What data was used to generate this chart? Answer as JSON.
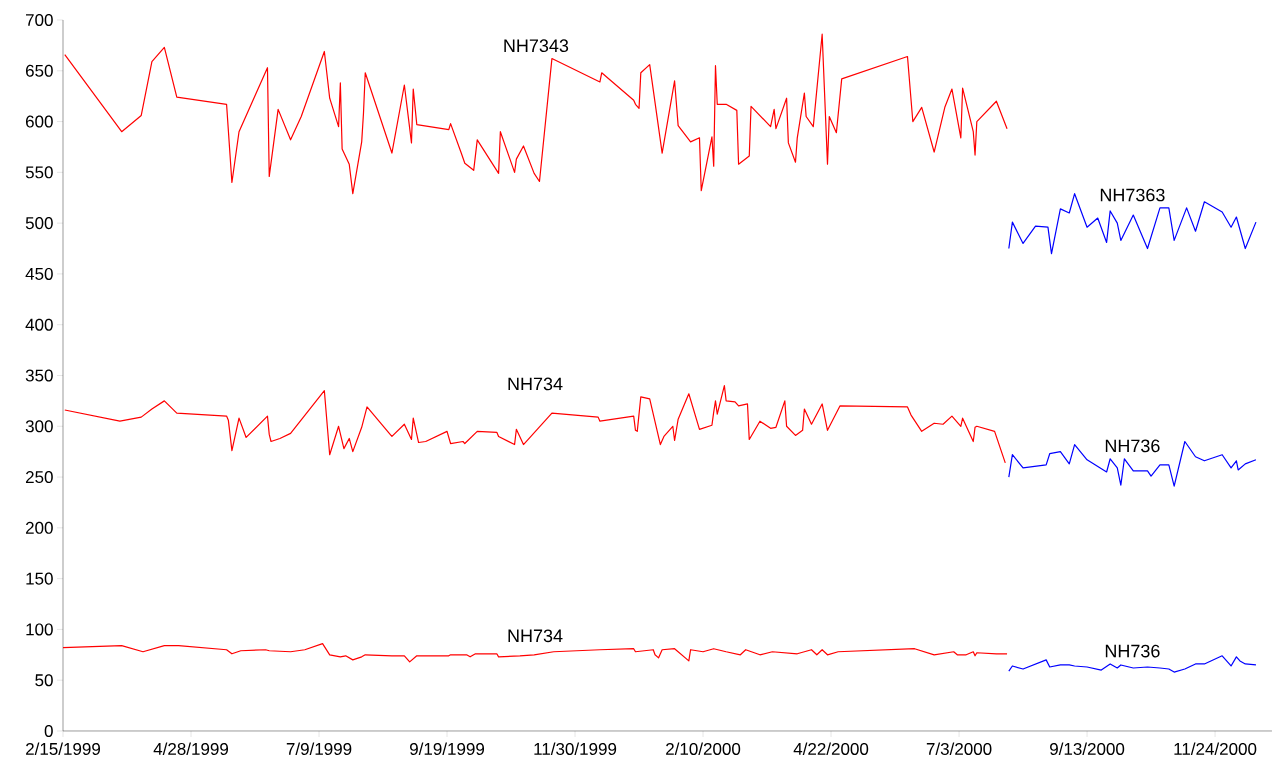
{
  "chart_data": {
    "type": "line",
    "xlim": [
      "1999-02-15",
      "2000-12-26"
    ],
    "xticks": [
      {
        "value": "1999-02-15",
        "label": "2/15/1999"
      },
      {
        "value": "1999-04-28",
        "label": "4/28/1999"
      },
      {
        "value": "1999-07-09",
        "label": "7/9/1999"
      },
      {
        "value": "1999-09-19",
        "label": "9/19/1999"
      },
      {
        "value": "1999-11-30",
        "label": "11/30/1999"
      },
      {
        "value": "2000-02-10",
        "label": "2/10/2000"
      },
      {
        "value": "2000-04-22",
        "label": "4/22/2000"
      },
      {
        "value": "2000-07-03",
        "label": "7/3/2000"
      },
      {
        "value": "2000-09-13",
        "label": "9/13/2000"
      },
      {
        "value": "2000-11-24",
        "label": "11/24/2000"
      }
    ],
    "ylim": [
      0,
      700
    ],
    "yticks": [
      0,
      50,
      100,
      150,
      200,
      250,
      300,
      350,
      400,
      450,
      500,
      550,
      600,
      650,
      700
    ],
    "series": [
      {
        "name": "NH7343",
        "color": "#ff0000",
        "x": [
          "1999-02-16",
          "1999-03-20",
          "1999-03-31",
          "1999-04-06",
          "1999-04-13",
          "1999-04-20",
          "1999-05-18",
          "1999-05-21",
          "1999-05-25",
          "1999-06-10",
          "1999-06-11",
          "1999-06-16",
          "1999-06-23",
          "1999-06-29",
          "1999-07-12",
          "1999-07-15",
          "1999-07-20",
          "1999-07-21",
          "1999-07-22",
          "1999-07-26",
          "1999-07-28",
          "1999-08-02",
          "1999-08-03",
          "1999-08-04",
          "1999-08-19",
          "1999-08-26",
          "1999-08-30",
          "1999-08-31",
          "1999-09-02",
          "1999-09-20",
          "1999-09-21",
          "1999-09-27",
          "1999-09-29",
          "1999-10-04",
          "1999-10-06",
          "1999-10-18",
          "1999-10-19",
          "1999-10-27",
          "1999-10-28",
          "1999-11-01",
          "1999-11-07",
          "1999-11-10",
          "1999-11-17",
          "1999-12-14",
          "1999-12-15",
          "2000-01-02",
          "2000-01-03",
          "2000-01-05",
          "2000-01-06",
          "2000-01-11",
          "2000-01-18",
          "2000-01-25",
          "2000-01-27",
          "2000-02-03",
          "2000-02-08",
          "2000-02-09",
          "2000-02-15",
          "2000-02-16",
          "2000-02-17",
          "2000-02-18",
          "2000-02-23",
          "2000-02-29",
          "2000-03-01",
          "2000-03-07",
          "2000-03-08",
          "2000-03-19",
          "2000-03-21",
          "2000-03-22",
          "2000-03-28",
          "2000-03-29",
          "2000-04-02",
          "2000-04-03",
          "2000-04-07",
          "2000-04-08",
          "2000-04-12",
          "2000-04-17",
          "2000-04-20",
          "2000-04-21",
          "2000-04-25",
          "2000-04-28",
          "2000-06-04",
          "2000-06-07",
          "2000-06-12",
          "2000-06-19",
          "2000-06-25",
          "2000-06-29",
          "2000-07-04",
          "2000-07-05",
          "2000-07-11",
          "2000-07-12",
          "2000-07-13",
          "2000-07-24",
          "2000-07-30"
        ],
        "values": [
          666,
          590,
          606,
          659,
          673,
          624,
          617,
          540,
          590,
          653,
          546,
          612,
          582,
          605,
          669,
          623,
          595,
          638,
          573,
          558,
          529,
          580,
          608,
          648,
          569,
          636,
          579,
          632,
          597,
          592,
          598,
          569,
          559,
          552,
          582,
          549,
          590,
          550,
          563,
          576,
          549,
          541,
          662,
          639,
          648,
          621,
          617,
          613,
          648,
          656,
          569,
          640,
          596,
          580,
          584,
          532,
          585,
          556,
          655,
          617,
          617,
          611,
          558,
          566,
          615,
          595,
          612,
          593,
          623,
          579,
          560,
          584,
          628,
          605,
          595,
          686,
          558,
          605,
          589,
          642,
          664,
          600,
          614,
          570,
          614,
          632,
          584,
          633,
          590,
          567,
          600,
          620,
          593
        ]
      },
      {
        "name": "NH7363",
        "color": "#0000ff",
        "x": [
          "2000-07-31",
          "2000-08-02",
          "2000-08-08",
          "2000-08-15",
          "2000-08-22",
          "2000-08-24",
          "2000-08-29",
          "2000-09-03",
          "2000-09-06",
          "2000-09-13",
          "2000-09-19",
          "2000-09-24",
          "2000-09-26",
          "2000-09-30",
          "2000-10-02",
          "2000-10-09",
          "2000-10-17",
          "2000-10-24",
          "2000-10-29",
          "2000-11-01",
          "2000-11-08",
          "2000-11-13",
          "2000-11-18",
          "2000-11-28",
          "2000-12-03",
          "2000-12-06",
          "2000-12-11",
          "2000-12-17"
        ],
        "values": [
          475,
          501,
          480,
          497,
          496,
          470,
          514,
          510,
          529,
          496,
          505,
          481,
          512,
          500,
          483,
          508,
          475,
          515,
          515,
          483,
          515,
          492,
          521,
          511,
          496,
          506,
          475,
          501
        ]
      },
      {
        "name": "NH734",
        "color": "#ff0000",
        "x": [
          "1999-02-16",
          "1999-03-19",
          "1999-03-31",
          "1999-04-06",
          "1999-04-13",
          "1999-04-20",
          "1999-05-18",
          "1999-05-19",
          "1999-05-21",
          "1999-05-25",
          "1999-05-29",
          "1999-06-10",
          "1999-06-11",
          "1999-06-12",
          "1999-06-17",
          "1999-06-23",
          "1999-07-12",
          "1999-07-15",
          "1999-07-20",
          "1999-07-23",
          "1999-07-26",
          "1999-07-28",
          "1999-08-02",
          "1999-08-05",
          "1999-08-18",
          "1999-08-19",
          "1999-08-26",
          "1999-08-30",
          "1999-08-31",
          "1999-09-03",
          "1999-09-07",
          "1999-09-19",
          "1999-09-21",
          "1999-09-28",
          "1999-09-29",
          "1999-10-06",
          "1999-10-17",
          "1999-10-18",
          "1999-10-27",
          "1999-10-28",
          "1999-11-01",
          "1999-11-17",
          "1999-12-13",
          "1999-12-14",
          "2000-01-02",
          "2000-01-03",
          "2000-01-04",
          "2000-01-06",
          "2000-01-11",
          "2000-01-17",
          "2000-01-19",
          "2000-01-24",
          "2000-01-25",
          "2000-01-27",
          "2000-02-02",
          "2000-02-08",
          "2000-02-15",
          "2000-02-16",
          "2000-02-17",
          "2000-02-18",
          "2000-02-22",
          "2000-02-23",
          "2000-02-28",
          "2000-03-01",
          "2000-03-06",
          "2000-03-07",
          "2000-03-13",
          "2000-03-19",
          "2000-03-22",
          "2000-03-27",
          "2000-03-28",
          "2000-04-02",
          "2000-04-06",
          "2000-04-07",
          "2000-04-11",
          "2000-04-17",
          "2000-04-20",
          "2000-04-27",
          "2000-06-04",
          "2000-06-06",
          "2000-06-12",
          "2000-06-19",
          "2000-06-24",
          "2000-06-29",
          "2000-07-04",
          "2000-07-05",
          "2000-07-11",
          "2000-07-12",
          "2000-07-13",
          "2000-07-23",
          "2000-07-29"
        ],
        "values": [
          316,
          305,
          309,
          317,
          325,
          313,
          310,
          306,
          276,
          308,
          289,
          310,
          292,
          285,
          288,
          293,
          335,
          272,
          300,
          278,
          288,
          275,
          299,
          319,
          292,
          290,
          302,
          287,
          308,
          284,
          285,
          295,
          283,
          285,
          283,
          295,
          294,
          290,
          282,
          297,
          282,
          313,
          309,
          305,
          310,
          296,
          295,
          329,
          327,
          282,
          290,
          300,
          286,
          307,
          332,
          297,
          301,
          314,
          325,
          312,
          340,
          325,
          324,
          320,
          322,
          287,
          305,
          298,
          299,
          325,
          300,
          291,
          296,
          317,
          302,
          322,
          296,
          320,
          319,
          311,
          295,
          303,
          302,
          310,
          300,
          308,
          285,
          299,
          300,
          295,
          264
        ]
      },
      {
        "name": "NH736",
        "color": "#0000ff",
        "x": [
          "2000-07-31",
          "2000-08-02",
          "2000-08-08",
          "2000-08-21",
          "2000-08-23",
          "2000-08-29",
          "2000-09-03",
          "2000-09-06",
          "2000-09-13",
          "2000-09-24",
          "2000-09-26",
          "2000-09-30",
          "2000-10-02",
          "2000-10-04",
          "2000-10-09",
          "2000-10-17",
          "2000-10-19",
          "2000-10-24",
          "2000-10-29",
          "2000-11-01",
          "2000-11-07",
          "2000-11-13",
          "2000-11-18",
          "2000-11-28",
          "2000-12-03",
          "2000-12-06",
          "2000-12-07",
          "2000-12-11",
          "2000-12-17"
        ],
        "values": [
          250,
          272,
          259,
          262,
          273,
          275,
          263,
          282,
          267,
          255,
          268,
          259,
          242,
          268,
          256,
          256,
          251,
          262,
          262,
          241,
          285,
          270,
          266,
          272,
          259,
          266,
          257,
          263,
          267
        ]
      },
      {
        "name": "NH734",
        "color": "#ff0000",
        "x": [
          "1999-02-15",
          "1999-03-20",
          "1999-04-01",
          "1999-04-13",
          "1999-04-21",
          "1999-05-18",
          "1999-05-21",
          "1999-05-26",
          "1999-06-09",
          "1999-06-11",
          "1999-06-23",
          "1999-07-01",
          "1999-07-11",
          "1999-07-15",
          "1999-07-21",
          "1999-07-24",
          "1999-07-28",
          "1999-08-02",
          "1999-08-04",
          "1999-08-19",
          "1999-08-26",
          "1999-08-29",
          "1999-09-02",
          "1999-09-20",
          "1999-09-21",
          "1999-09-30",
          "1999-10-02",
          "1999-10-05",
          "1999-10-17",
          "1999-10-18",
          "1999-10-30",
          "1999-11-07",
          "1999-11-18",
          "1999-12-14",
          "2000-01-02",
          "2000-01-03",
          "2000-01-13",
          "2000-01-14",
          "2000-01-16",
          "2000-01-18",
          "2000-01-25",
          "2000-02-02",
          "2000-02-03",
          "2000-02-10",
          "2000-02-16",
          "2000-02-23",
          "2000-03-02",
          "2000-03-05",
          "2000-03-13",
          "2000-03-20",
          "2000-04-03",
          "2000-04-11",
          "2000-04-14",
          "2000-04-17",
          "2000-04-20",
          "2000-04-26",
          "2000-06-08",
          "2000-06-19",
          "2000-06-30",
          "2000-07-02",
          "2000-07-07",
          "2000-07-11",
          "2000-07-12",
          "2000-07-13",
          "2000-07-24",
          "2000-07-30"
        ],
        "values": [
          82,
          84,
          78,
          84,
          84,
          80,
          76,
          79,
          80,
          79,
          78,
          80,
          86,
          75,
          73,
          74,
          70,
          73,
          75,
          74,
          74,
          68,
          74,
          74,
          75,
          75,
          73,
          76,
          76,
          73,
          74,
          75,
          78,
          80,
          81,
          78,
          80,
          75,
          72,
          80,
          81,
          69,
          80,
          78,
          81,
          78,
          75,
          80,
          75,
          78,
          76,
          80,
          75,
          80,
          75,
          78,
          81,
          75,
          78,
          75,
          75,
          78,
          74,
          77,
          76,
          76
        ]
      },
      {
        "name": "NH736",
        "color": "#0000ff",
        "x": [
          "2000-07-31",
          "2000-08-02",
          "2000-08-08",
          "2000-08-21",
          "2000-08-23",
          "2000-08-29",
          "2000-09-03",
          "2000-09-06",
          "2000-09-13",
          "2000-09-21",
          "2000-09-26",
          "2000-09-30",
          "2000-10-02",
          "2000-10-09",
          "2000-10-17",
          "2000-10-24",
          "2000-10-29",
          "2000-11-01",
          "2000-11-07",
          "2000-11-13",
          "2000-11-18",
          "2000-11-28",
          "2000-12-03",
          "2000-12-06",
          "2000-12-08",
          "2000-12-11",
          "2000-12-17"
        ],
        "values": [
          59,
          64,
          61,
          70,
          63,
          65,
          65,
          64,
          63,
          60,
          66,
          62,
          65,
          62,
          63,
          62,
          61,
          58,
          61,
          66,
          66,
          74,
          64,
          73,
          69,
          66,
          65
        ]
      }
    ]
  }
}
